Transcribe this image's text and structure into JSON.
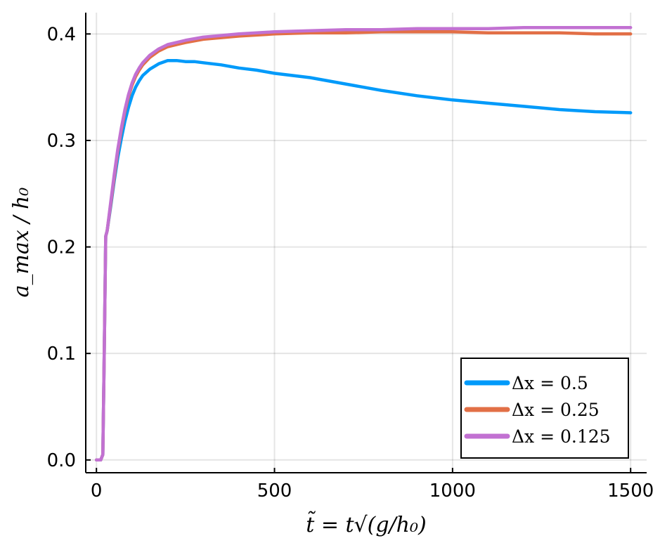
{
  "chart_data": {
    "type": "line",
    "xlabel": "t̃ = t√(g/h₀)",
    "ylabel": "a_max / h₀",
    "xlim": [
      -30,
      1545
    ],
    "ylim": [
      -0.012,
      0.42
    ],
    "xticks": [
      0,
      500,
      1000,
      1500
    ],
    "xtick_labels": [
      "0",
      "500",
      "1000",
      "1500"
    ],
    "yticks": [
      0.0,
      0.1,
      0.2,
      0.3,
      0.4
    ],
    "ytick_labels": [
      "0.0",
      "0.1",
      "0.2",
      "0.3",
      "0.4"
    ],
    "grid": true,
    "legend_position": "bottom-right",
    "series": [
      {
        "name": "Δx = 0.5",
        "color": "#009AFA",
        "x": [
          0,
          12,
          18,
          22,
          26,
          30,
          40,
          50,
          60,
          70,
          80,
          90,
          100,
          110,
          120,
          130,
          150,
          175,
          200,
          225,
          250,
          275,
          300,
          350,
          400,
          450,
          500,
          600,
          700,
          800,
          900,
          1000,
          1100,
          1200,
          1300,
          1400,
          1500
        ],
        "y": [
          0.0,
          0.0,
          0.005,
          0.1,
          0.21,
          0.215,
          0.238,
          0.262,
          0.284,
          0.302,
          0.318,
          0.331,
          0.342,
          0.35,
          0.356,
          0.361,
          0.367,
          0.372,
          0.375,
          0.375,
          0.374,
          0.374,
          0.373,
          0.371,
          0.368,
          0.366,
          0.363,
          0.359,
          0.353,
          0.347,
          0.342,
          0.338,
          0.335,
          0.332,
          0.329,
          0.327,
          0.326
        ]
      },
      {
        "name": "Δx = 0.25",
        "color": "#E26F46",
        "x": [
          0,
          12,
          18,
          22,
          26,
          30,
          40,
          50,
          60,
          70,
          80,
          90,
          100,
          110,
          120,
          130,
          150,
          175,
          200,
          250,
          300,
          400,
          500,
          600,
          700,
          800,
          900,
          1000,
          1100,
          1200,
          1300,
          1400,
          1500
        ],
        "y": [
          0.0,
          0.0,
          0.005,
          0.1,
          0.21,
          0.215,
          0.24,
          0.265,
          0.29,
          0.31,
          0.327,
          0.341,
          0.352,
          0.36,
          0.366,
          0.371,
          0.378,
          0.384,
          0.388,
          0.392,
          0.395,
          0.398,
          0.4,
          0.401,
          0.401,
          0.402,
          0.402,
          0.402,
          0.401,
          0.401,
          0.401,
          0.4,
          0.4
        ]
      },
      {
        "name": "Δx = 0.125",
        "color": "#C271D2",
        "x": [
          0,
          12,
          18,
          22,
          26,
          30,
          40,
          50,
          60,
          70,
          80,
          90,
          100,
          110,
          120,
          130,
          150,
          175,
          200,
          250,
          300,
          400,
          500,
          600,
          700,
          800,
          900,
          1000,
          1100,
          1200,
          1300,
          1400,
          1500
        ],
        "y": [
          0.0,
          0.0,
          0.005,
          0.1,
          0.21,
          0.215,
          0.242,
          0.268,
          0.292,
          0.312,
          0.329,
          0.343,
          0.354,
          0.362,
          0.368,
          0.373,
          0.38,
          0.386,
          0.39,
          0.394,
          0.397,
          0.4,
          0.402,
          0.403,
          0.404,
          0.404,
          0.405,
          0.405,
          0.405,
          0.406,
          0.406,
          0.406,
          0.406
        ]
      }
    ]
  }
}
